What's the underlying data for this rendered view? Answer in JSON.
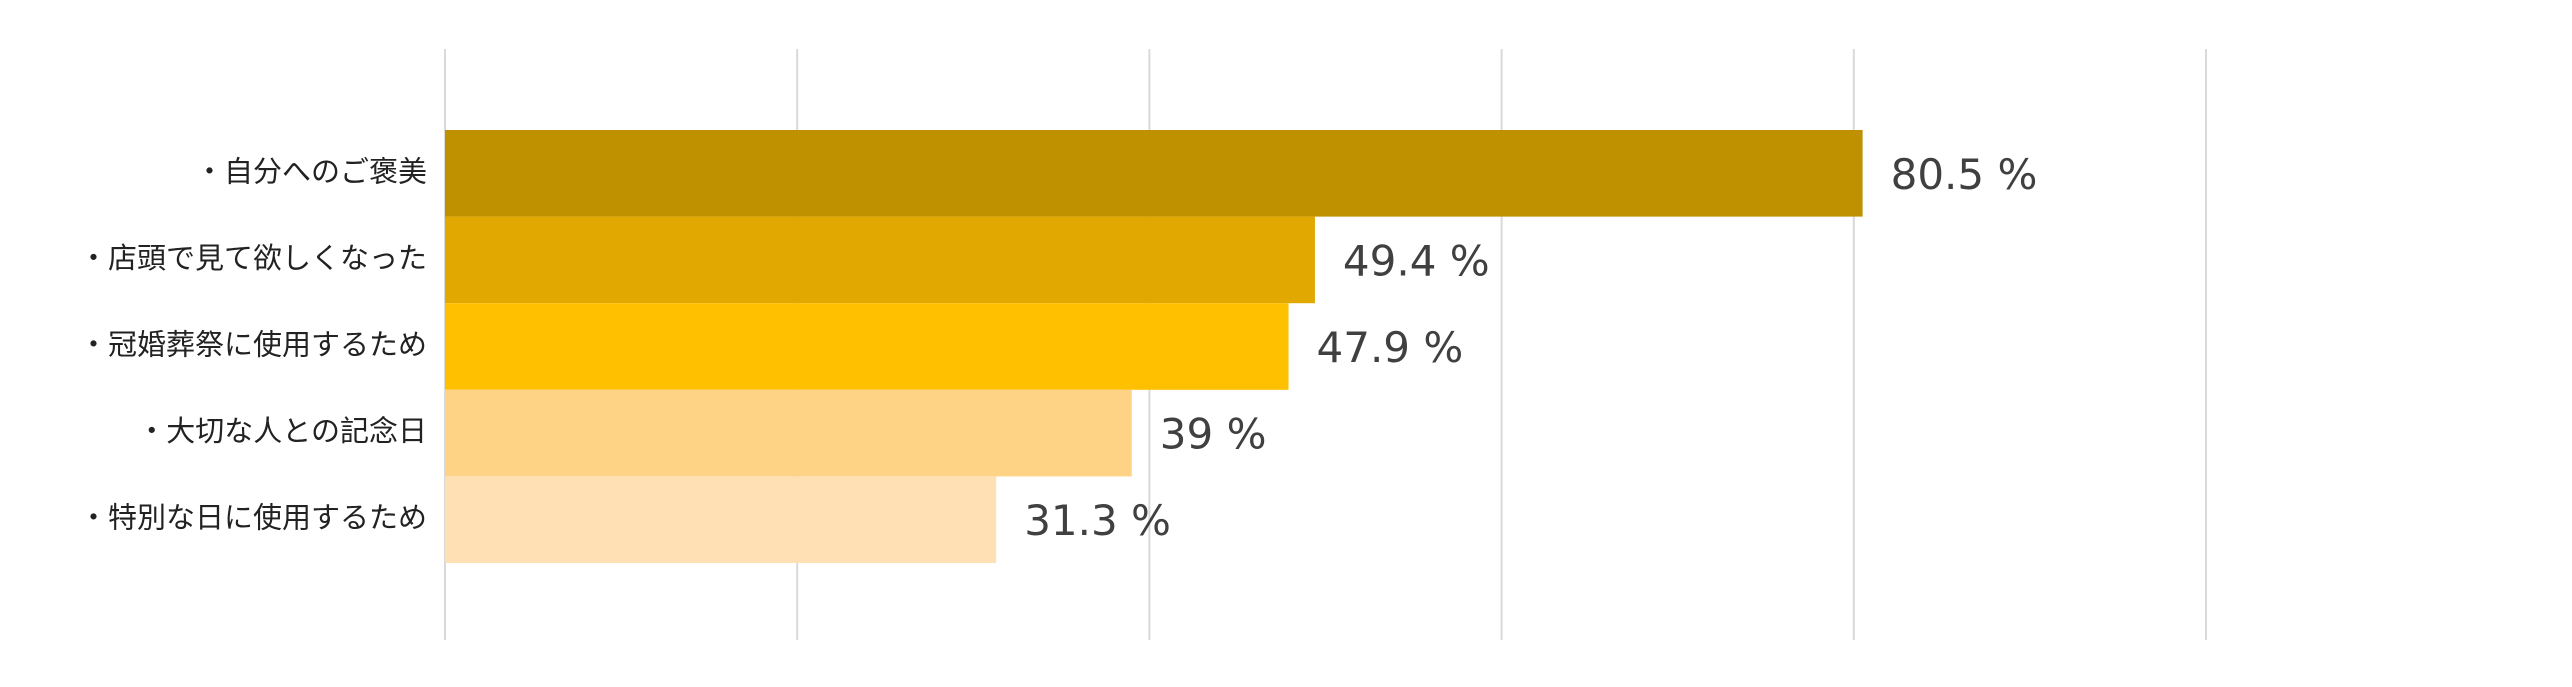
{
  "chart_data": {
    "type": "bar",
    "orientation": "horizontal",
    "categories": [
      "・自分へのご褒美",
      "・店頭で見て欲しくなった",
      "・冠婚葬祭に使用するため",
      "・大切な人との記念日",
      "・特別な日に使用するため"
    ],
    "values": [
      80.5,
      49.4,
      47.9,
      39,
      31.3
    ],
    "value_labels": [
      "80.5 %",
      "49.4 %",
      "47.9 %",
      "39 %",
      "31.3 %"
    ],
    "colors": [
      "#bf9000",
      "#e0a800",
      "#ffc000",
      "#ffd386",
      "#ffe0b5"
    ],
    "xlim": [
      0,
      100
    ],
    "xticks": [
      0,
      20,
      40,
      60,
      80,
      100
    ],
    "grid": true
  }
}
